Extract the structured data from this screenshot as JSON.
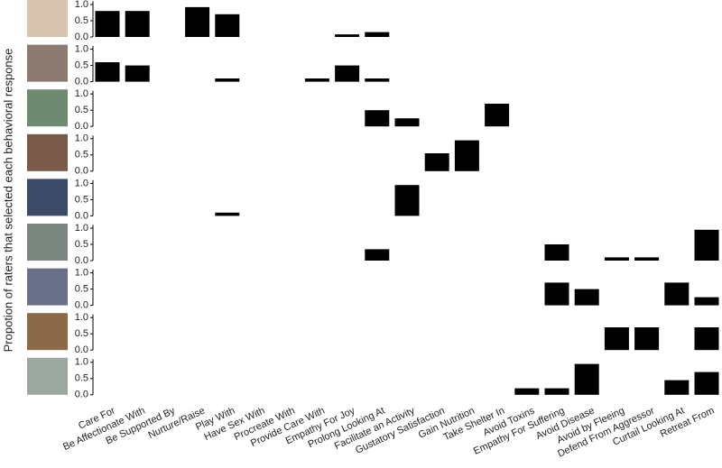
{
  "chart_data": {
    "type": "bar",
    "ylabel": "Propotion of raters that selected each behavioral response",
    "categories": [
      "Care For",
      "Be Affectionate With",
      "Be Supported By",
      "Nurture/Raise",
      "Play With",
      "Have Sex With",
      "Procreate With",
      "Provide Care With",
      "Empathy For Joy",
      "Prolong Looking At",
      "Facilitate an Activity",
      "Gustatory Satisfaction",
      "Gain Nutrition",
      "Take Shelter In",
      "Avoid Toxins",
      "Empathy For Suffering",
      "Avoid Disease",
      "Avoid by Fleeing",
      "Defend From Aggressor",
      "Curtail Looking At",
      "Retreat From"
    ],
    "color": "#000000",
    "ylim": [
      0,
      1.1
    ],
    "yticks": [
      {
        "value": 0,
        "label": "0.0"
      },
      {
        "value": 0.5,
        "label": "0.5"
      },
      {
        "value": 1,
        "label": "1.0"
      }
    ],
    "panels": [
      {
        "values": [
          0.8,
          0.8,
          0,
          0.92,
          0.7,
          0,
          0,
          0,
          0.08,
          0.15,
          0,
          0,
          0,
          0,
          0,
          0,
          0,
          0,
          0,
          0,
          0
        ]
      },
      {
        "values": [
          0.6,
          0.5,
          0,
          0,
          0.1,
          0,
          0,
          0.1,
          0.5,
          0.1,
          0,
          0,
          0,
          0,
          0,
          0,
          0,
          0,
          0,
          0,
          0
        ]
      },
      {
        "values": [
          0,
          0,
          0,
          0,
          0,
          0,
          0,
          0,
          0,
          0.5,
          0.25,
          0,
          0,
          0.7,
          0,
          0,
          0,
          0,
          0,
          0,
          0
        ]
      },
      {
        "values": [
          0,
          0,
          0,
          0,
          0,
          0,
          0,
          0,
          0,
          0,
          0,
          0.55,
          0.95,
          0,
          0,
          0,
          0,
          0,
          0,
          0,
          0
        ]
      },
      {
        "values": [
          0,
          0,
          0,
          0,
          0.1,
          0,
          0,
          0,
          0,
          0,
          0.95,
          0,
          0,
          0,
          0,
          0,
          0,
          0,
          0,
          0,
          0
        ]
      },
      {
        "values": [
          0,
          0,
          0,
          0,
          0,
          0,
          0,
          0,
          0,
          0.35,
          0,
          0,
          0,
          0,
          0,
          0.5,
          0,
          0.1,
          0.1,
          0,
          0.95
        ]
      },
      {
        "values": [
          0,
          0,
          0,
          0,
          0,
          0,
          0,
          0,
          0,
          0,
          0,
          0,
          0,
          0,
          0,
          0.7,
          0.5,
          0,
          0,
          0.7,
          0.25
        ]
      },
      {
        "values": [
          0,
          0,
          0,
          0,
          0,
          0,
          0,
          0,
          0,
          0,
          0,
          0,
          0,
          0,
          0,
          0,
          0,
          0.7,
          0.7,
          0,
          0.7
        ]
      },
      {
        "values": [
          0,
          0,
          0,
          0,
          0,
          0,
          0,
          0,
          0,
          0,
          0,
          0,
          0,
          0,
          0.2,
          0.2,
          0.95,
          0,
          0,
          0.45,
          0.7
        ]
      }
    ]
  }
}
